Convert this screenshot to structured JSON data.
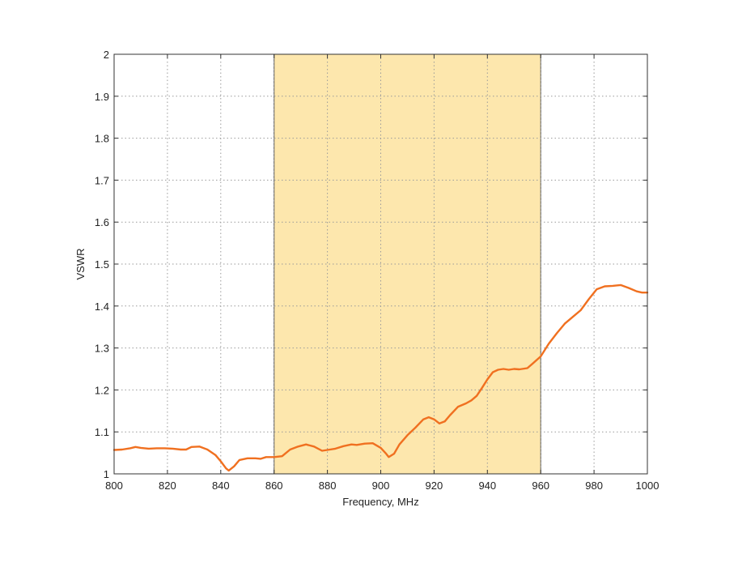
{
  "chart_data": {
    "type": "line",
    "title": "",
    "xlabel": "Frequency, MHz",
    "ylabel": "VSWR",
    "xlim": [
      800,
      1000
    ],
    "ylim": [
      1,
      2
    ],
    "xticks": [
      800,
      820,
      840,
      860,
      880,
      900,
      920,
      940,
      960,
      980,
      1000
    ],
    "yticks": [
      1,
      1.1,
      1.2,
      1.3,
      1.4,
      1.5,
      1.6,
      1.7,
      1.8,
      1.9,
      2
    ],
    "ytick_labels": [
      "1",
      "1.1",
      "1.2",
      "1.3",
      "1.4",
      "1.5",
      "1.6",
      "1.7",
      "1.8",
      "1.9",
      "2"
    ],
    "grid": true,
    "highlight_band": {
      "x": [
        860,
        960
      ],
      "color": "#fde7ad"
    },
    "series": [
      {
        "color": "#f07020",
        "x": [
          800,
          803,
          806,
          808,
          810,
          813,
          816,
          819,
          822,
          825,
          827,
          829,
          832,
          835,
          838,
          840,
          842,
          843,
          845,
          847,
          850,
          853,
          855,
          857,
          860,
          863,
          866,
          869,
          872,
          875,
          878,
          880,
          883,
          886,
          889,
          891,
          894,
          897,
          900,
          902,
          903,
          905,
          907,
          910,
          913,
          916,
          918,
          920,
          922,
          924,
          926,
          929,
          932,
          934,
          936,
          938,
          940,
          942,
          944,
          946,
          948,
          950,
          952,
          955,
          957,
          960,
          963,
          966,
          969,
          972,
          975,
          978,
          981,
          984,
          987,
          990,
          993,
          996,
          998,
          1000
        ],
        "y": [
          1.057,
          1.058,
          1.061,
          1.064,
          1.062,
          1.06,
          1.061,
          1.061,
          1.06,
          1.058,
          1.058,
          1.064,
          1.065,
          1.058,
          1.045,
          1.03,
          1.013,
          1.008,
          1.018,
          1.033,
          1.037,
          1.037,
          1.036,
          1.04,
          1.04,
          1.042,
          1.058,
          1.065,
          1.07,
          1.065,
          1.055,
          1.057,
          1.06,
          1.066,
          1.07,
          1.069,
          1.072,
          1.073,
          1.062,
          1.048,
          1.04,
          1.048,
          1.07,
          1.092,
          1.11,
          1.13,
          1.135,
          1.13,
          1.12,
          1.125,
          1.14,
          1.16,
          1.168,
          1.175,
          1.186,
          1.205,
          1.225,
          1.242,
          1.248,
          1.25,
          1.248,
          1.25,
          1.249,
          1.252,
          1.263,
          1.28,
          1.31,
          1.335,
          1.358,
          1.374,
          1.39,
          1.416,
          1.44,
          1.447,
          1.448,
          1.45,
          1.443,
          1.435,
          1.432,
          1.432
        ]
      }
    ]
  }
}
